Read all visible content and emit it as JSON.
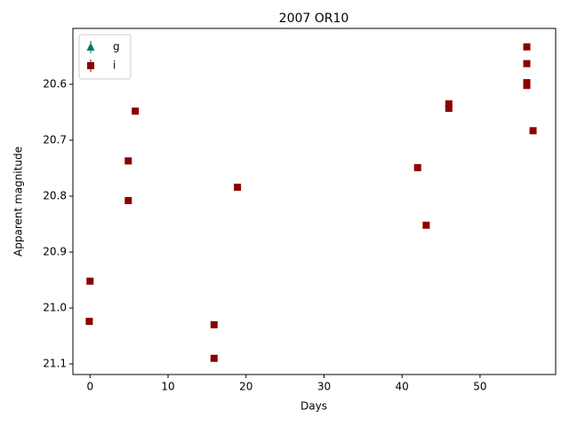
{
  "chart_data": {
    "type": "scatter",
    "title": "2007 OR10",
    "xlabel": "Days",
    "ylabel": "Apparent magnitude",
    "xlim": [
      -2.2,
      59.7
    ],
    "ylim": [
      21.119,
      20.5
    ],
    "xticks": [
      0,
      10,
      20,
      30,
      40,
      50
    ],
    "yticks": [
      20.6,
      20.7,
      20.8,
      20.9,
      {
        "value": 21,
        "label": "21.0"
      },
      21.1
    ],
    "legend": "upper left",
    "series": [
      {
        "name": "g",
        "color": "#00796b",
        "marker": "triangle",
        "x": [],
        "values": []
      },
      {
        "name": "i",
        "color": "#8b0000",
        "marker": "square",
        "x": [
          0,
          -0.1,
          5.8,
          4.9,
          4.9,
          15.9,
          15.9,
          18.9,
          42.0,
          43.1,
          46.0,
          46.0,
          56.0,
          56.0,
          56.0,
          56.0,
          56.8
        ],
        "values": [
          20.952,
          21.024,
          20.648,
          20.737,
          20.808,
          21.03,
          21.09,
          20.784,
          20.749,
          20.852,
          20.635,
          20.643,
          20.533,
          20.563,
          20.597,
          20.602,
          20.683
        ]
      }
    ]
  }
}
